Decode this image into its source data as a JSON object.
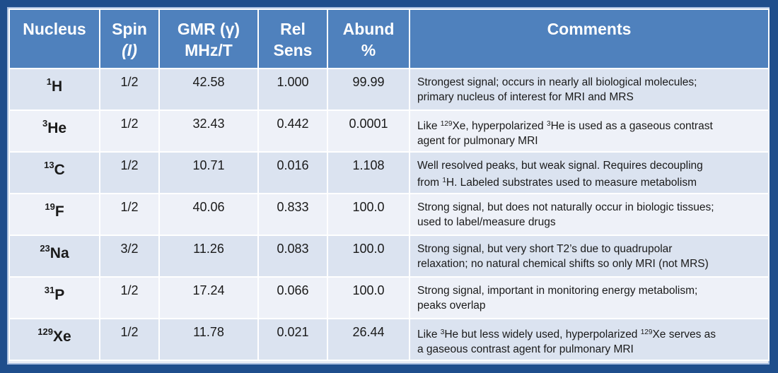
{
  "headers": {
    "nucleus": "Nucleus",
    "spin_line1": "Spin",
    "spin_line2": "(I)",
    "gmr_line1": "GMR (γ)",
    "gmr_line2": "MHz/T",
    "rel_line1": "Rel",
    "rel_line2": "Sens",
    "abund_line1": "Abund",
    "abund_line2": "%",
    "comments": "Comments"
  },
  "rows": [
    {
      "mass": "1",
      "symbol": "H",
      "spin": "1/2",
      "gmr": "42.58",
      "rel": "1.000",
      "abund": "99.99",
      "comment_line1": "Strongest signal; occurs in nearly all biological molecules;",
      "comment_line2": "primary nucleus of interest for MRI and MRS"
    },
    {
      "mass": "3",
      "symbol": "He",
      "spin": "1/2",
      "gmr": "32.43",
      "rel": "0.442",
      "abund": "0.0001",
      "comment_a": "Like ",
      "comment_a_sup": "129",
      "comment_b": "Xe, hyperpolarized ",
      "comment_b_sup": "3",
      "comment_c": "He is used as a gaseous contrast",
      "comment_line2": "agent for pulmonary MRI"
    },
    {
      "mass": "13",
      "symbol": "C",
      "spin": "1/2",
      "gmr": "10.71",
      "rel": "0.016",
      "abund": "1.108",
      "comment_line1": "Well resolved peaks, but weak signal. Requires decoupling",
      "comment_a": "from ",
      "comment_a_sup": "1",
      "comment_b": "H. Labeled substrates used to measure metabolism"
    },
    {
      "mass": "19",
      "symbol": "F",
      "spin": "1/2",
      "gmr": "40.06",
      "rel": "0.833",
      "abund": "100.0",
      "comment_line1": "Strong signal, but does not naturally occur in biologic tissues;",
      "comment_line2": "used to label/measure drugs"
    },
    {
      "mass": "23",
      "symbol": "Na",
      "spin": "3/2",
      "gmr": "11.26",
      "rel": "0.083",
      "abund": "100.0",
      "comment_line1": "Strong signal, but very short T2’s due to quadrupolar",
      "comment_line2": "relaxation; no natural chemical shifts so only MRI (not MRS)"
    },
    {
      "mass": "31",
      "symbol": "P",
      "spin": "1/2",
      "gmr": "17.24",
      "rel": "0.066",
      "abund": "100.0",
      "comment_line1": "Strong signal, important in monitoring energy metabolism;",
      "comment_line2": "peaks overlap"
    },
    {
      "mass": "129",
      "symbol": "Xe",
      "spin": "1/2",
      "gmr": "11.78",
      "rel": "0.021",
      "abund": "26.44",
      "comment_a": "Like ",
      "comment_a_sup": "3",
      "comment_b": "He but less widely used, hyperpolarized ",
      "comment_b_sup": "129",
      "comment_c": "Xe serves as",
      "comment_line2": "a gaseous contrast agent for pulmonary MRI"
    }
  ]
}
